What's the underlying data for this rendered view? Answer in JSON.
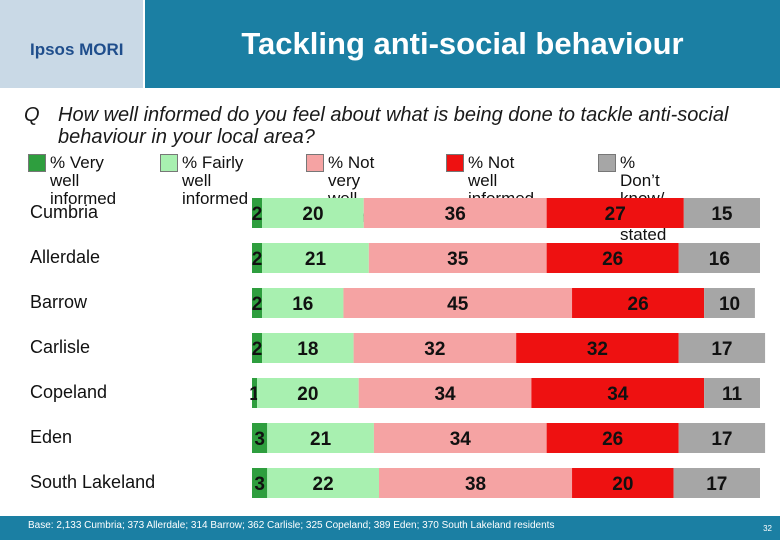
{
  "logo": {
    "text": "Ipsos MORI"
  },
  "header": {
    "title": "Tackling anti-social behaviour"
  },
  "question": {
    "label": "Q",
    "text": "How well informed do you feel about what is being done to tackle anti-social behaviour in your local area?"
  },
  "legend": [
    {
      "label": "% Very well\ninformed",
      "color": "#2e9e3e"
    },
    {
      "label": "% Fairly well\ninformed",
      "color": "#a8f0b0"
    },
    {
      "label": "% Not very\nwell informed",
      "color": "#f5a3a3"
    },
    {
      "label": "% Not well\ninformed at all",
      "color": "#ee1111"
    },
    {
      "label": "% Don’t know/\nnot stated",
      "color": "#a6a6a6"
    }
  ],
  "chart_data": {
    "type": "bar",
    "orientation": "horizontal",
    "stacked": true,
    "categories": [
      "Cumbria",
      "Allerdale",
      "Barrow",
      "Carlisle",
      "Copeland",
      "Eden",
      "South Lakeland"
    ],
    "series": [
      {
        "name": "% Very well informed",
        "color": "#2e9e3e",
        "values": [
          2,
          2,
          2,
          2,
          1,
          3,
          3
        ]
      },
      {
        "name": "% Fairly well informed",
        "color": "#a8f0b0",
        "values": [
          20,
          21,
          16,
          18,
          20,
          21,
          22
        ]
      },
      {
        "name": "% Not very well informed",
        "color": "#f5a3a3",
        "values": [
          36,
          35,
          45,
          32,
          34,
          34,
          38
        ]
      },
      {
        "name": "% Not well informed at all",
        "color": "#ee1111",
        "values": [
          27,
          26,
          26,
          32,
          34,
          26,
          20
        ]
      },
      {
        "name": "% Don’t know/ not stated",
        "color": "#a6a6a6",
        "values": [
          15,
          16,
          10,
          17,
          11,
          17,
          17
        ]
      }
    ],
    "xlim": [
      0,
      100
    ]
  },
  "footer": {
    "base_note": "Base: 2,133 Cumbria; 373 Allerdale; 314 Barrow; 362 Carlisle; 325 Copeland; 389 Eden; 370 South Lakeland residents",
    "page_number": "32"
  }
}
